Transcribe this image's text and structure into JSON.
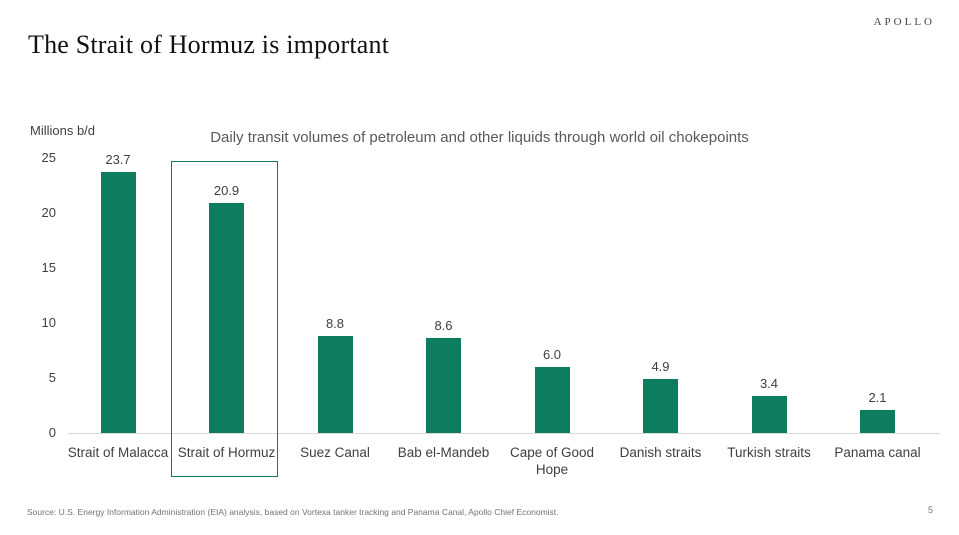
{
  "header": {
    "brand": "APOLLO",
    "title": "The Strait of Hormuz is important"
  },
  "chart_data": {
    "type": "bar",
    "title": "Daily transit volumes of petroleum and other liquids through world oil chokepoints",
    "ylabel": "Millions b/d",
    "xlabel": "",
    "categories": [
      "Strait of Malacca",
      "Strait of Hormuz",
      "Suez Canal",
      "Bab el-Mandeb",
      "Cape of Good Hope",
      "Danish straits",
      "Turkish straits",
      "Panama canal"
    ],
    "values": [
      23.7,
      20.9,
      8.8,
      8.6,
      6.0,
      4.9,
      3.4,
      2.1
    ],
    "ylim": [
      0,
      25
    ],
    "yticks": [
      0,
      5,
      10,
      15,
      20,
      25
    ],
    "grid": false,
    "legend": false,
    "bar_color": "#0e7c5f",
    "highlight_index": 1,
    "highlight_box_color": "#0e7c5f"
  },
  "footer": {
    "source": "Source: U.S. Energy Information Administration (EIA) analysis, based on Vortexa tanker tracking and Panama Canal, Apollo Chief Economist.",
    "page_number": "5"
  }
}
